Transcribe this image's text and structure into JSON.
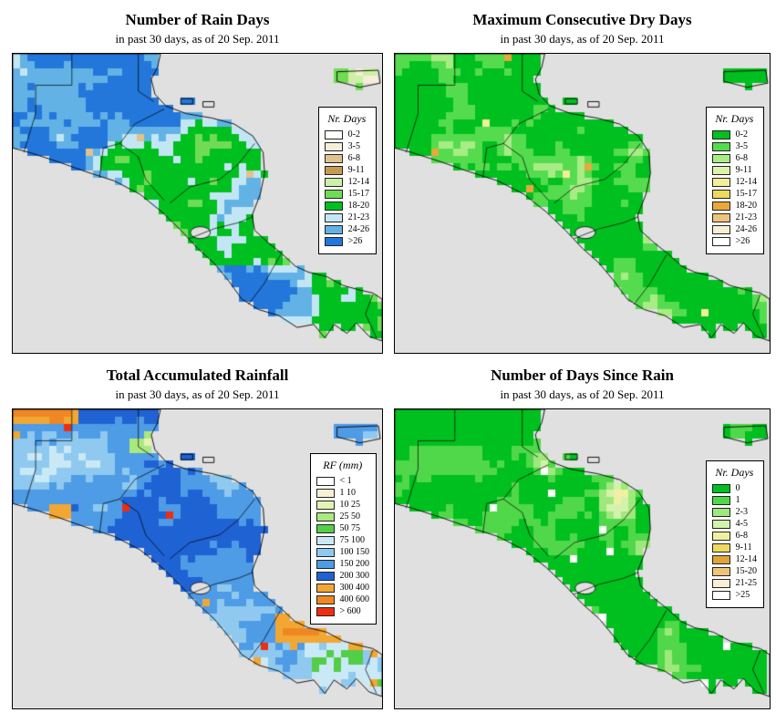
{
  "page": {
    "background": "#FFFFFF",
    "as_of_date": "20 Sep. 2011"
  },
  "map": {
    "sea_color": "#E0E0E0",
    "outline_color": "#000000",
    "legend_bg": "#FFFFFF"
  },
  "panels": [
    {
      "id": "rain-days",
      "title": "Number of Rain Days",
      "subtitle": "in past 30 days, as of 20 Sep. 2011",
      "legend": {
        "title": "Nr. Days",
        "entries": [
          {
            "label": "0-2",
            "color": "#FFFFFF"
          },
          {
            "label": "3-5",
            "color": "#F6EED6"
          },
          {
            "label": "6-8",
            "color": "#DFC28D"
          },
          {
            "label": "9-11",
            "color": "#C79A52"
          },
          {
            "label": "12-14",
            "color": "#CBF0A6"
          },
          {
            "label": "15-17",
            "color": "#70DC55"
          },
          {
            "label": "18-20",
            "color": "#00C020"
          },
          {
            "label": "21-23",
            "color": "#C3E6F4"
          },
          {
            "label": "24-26",
            "color": "#62B2E6"
          },
          {
            "label": ">26",
            "color": "#2377DA"
          }
        ]
      }
    },
    {
      "id": "dry-days",
      "title": "Maximum Consecutive Dry Days",
      "subtitle": "in past 30 days, as of 20 Sep. 2011",
      "legend": {
        "title": "Nr. Days",
        "entries": [
          {
            "label": "0-2",
            "color": "#00C020"
          },
          {
            "label": "3-5",
            "color": "#55DC4E"
          },
          {
            "label": "6-8",
            "color": "#A8EC86"
          },
          {
            "label": "9-11",
            "color": "#DFF3A8"
          },
          {
            "label": "12-14",
            "color": "#F2EE9A"
          },
          {
            "label": "15-17",
            "color": "#EFD95F"
          },
          {
            "label": "18-20",
            "color": "#E9A83B"
          },
          {
            "label": "21-23",
            "color": "#EFC379"
          },
          {
            "label": "24-26",
            "color": "#F8EFD5"
          },
          {
            "label": ">26",
            "color": "#FFFFFF"
          }
        ]
      }
    },
    {
      "id": "rainfall",
      "title": "Total Accumulated Rainfall",
      "subtitle": "in past 30 days, as of 20 Sep. 2011",
      "legend": {
        "title": "RF (mm)",
        "entries": [
          {
            "label": "< 1",
            "color": "#FFFFFF"
          },
          {
            "label": "1 10",
            "color": "#F7F0D2"
          },
          {
            "label": "10 25",
            "color": "#E4F3B4"
          },
          {
            "label": "25 50",
            "color": "#A9E97E"
          },
          {
            "label": "50 75",
            "color": "#52CE47"
          },
          {
            "label": "75 100",
            "color": "#CAE9F7"
          },
          {
            "label": "100 150",
            "color": "#8FC9F0"
          },
          {
            "label": "150 200",
            "color": "#4E9BE6"
          },
          {
            "label": "200 300",
            "color": "#1F62D4"
          },
          {
            "label": "300 400",
            "color": "#F2A734"
          },
          {
            "label": "400 600",
            "color": "#EF8722"
          },
          {
            "label": "> 600",
            "color": "#EE2E10"
          }
        ]
      }
    },
    {
      "id": "days-since-rain",
      "title": "Number of Days Since Rain",
      "subtitle": "in past 30 days, as of 20 Sep. 2011",
      "legend": {
        "title": "Nr. Days",
        "entries": [
          {
            "label": "0",
            "color": "#00C020"
          },
          {
            "label": "1",
            "color": "#50D84A"
          },
          {
            "label": "2-3",
            "color": "#9FE87C"
          },
          {
            "label": "4-5",
            "color": "#D4F2AC"
          },
          {
            "label": "6-8",
            "color": "#F0F0A2"
          },
          {
            "label": "9-11",
            "color": "#EFD95F"
          },
          {
            "label": "12-14",
            "color": "#E0A33C"
          },
          {
            "label": "15-20",
            "color": "#EFC379"
          },
          {
            "label": "21-25",
            "color": "#F8EFD5"
          },
          {
            "label": ">25",
            "color": "#FFFFFF"
          }
        ]
      }
    }
  ],
  "chart_data": [
    {
      "type": "heatmap",
      "subtype": "gridded geographic raster map",
      "region_shown": "Central America (S. Mexico to Panama, Jamaica at top right)",
      "title": "Number of Rain Days",
      "window": "past 30 days",
      "as_of": "20 Sep. 2011",
      "classes": [
        "0-2",
        "3-5",
        "6-8",
        "9-11",
        "12-14",
        "15-17",
        "18-20",
        "21-23",
        "24-26",
        ">26"
      ],
      "pattern": "Guatemala and southern Mexico mostly 21 to >26 rain days (blues); Honduras and Nicaragua mostly 15-20 (greens) with pale-blue patches; Costa Rica and Panama coasts a mix of 18 to >26; rare tan (6-11) single cells"
    },
    {
      "type": "heatmap",
      "subtype": "gridded geographic raster map",
      "region_shown": "Central America (S. Mexico to Panama, Jamaica at top right)",
      "title": "Maximum Consecutive Dry Days",
      "window": "past 30 days",
      "as_of": "20 Sep. 2011",
      "classes": [
        "0-2",
        "3-5",
        "6-8",
        "9-11",
        "12-14",
        "15-17",
        "18-20",
        "21-23",
        "24-26",
        ">26"
      ],
      "pattern": "nearly uniform 0-2 dry days (solid green) with scattered 3-5 lighter green patches and rare yellow/orange single cells near the Guatemala-Honduras area"
    },
    {
      "type": "heatmap",
      "subtype": "gridded geographic raster map",
      "region_shown": "Central America (S. Mexico to Panama, Jamaica at top right)",
      "title": "Total Accumulated Rainfall",
      "window": "past 30 days",
      "as_of": "20 Sep. 2011",
      "classes": [
        "<1",
        "1-10",
        "10-25",
        "25-50",
        "50-75",
        "75-100",
        "100-150",
        "150-200",
        "200-300",
        "300-400",
        "400-600",
        ">600"
      ],
      "pattern": "mostly 100-300 mm (blues); 300-600 mm orange pockets over NW Guatemala / S. Mexico and along Pacific Panama; drier 10-75 mm green/cream patches inland"
    },
    {
      "type": "heatmap",
      "subtype": "gridded geographic raster map",
      "region_shown": "Central America (S. Mexico to Panama, Jamaica at top right)",
      "title": "Number of Days Since Rain",
      "window": "past 30 days",
      "as_of": "20 Sep. 2011",
      "classes": [
        "0",
        "1",
        "2-3",
        "4-5",
        "6-8",
        "9-11",
        "12-14",
        "15-20",
        "21-25",
        ">25"
      ],
      "pattern": "nearly uniform 0-1 days since rain (greens) with scattered 2-5 day light-green patches and a few pale/white cells over central Honduras"
    }
  ]
}
